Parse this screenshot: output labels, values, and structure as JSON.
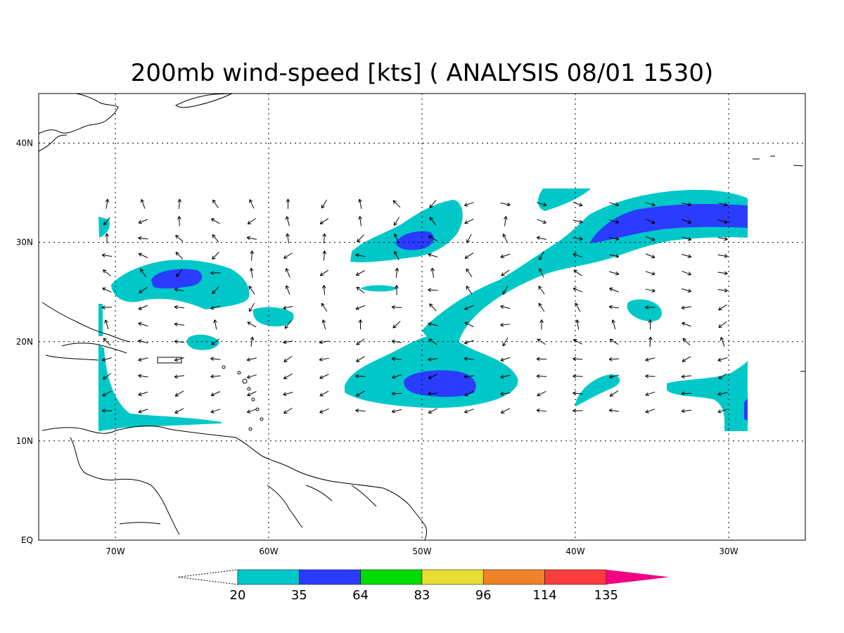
{
  "title": "200mb wind-speed [kts] ( ANALYSIS 08/01 1530)",
  "map": {
    "lon_range": [
      -75,
      -25
    ],
    "lat_range": [
      0,
      45
    ],
    "lat_ticks": [
      {
        "value": 0,
        "label": "EQ"
      },
      {
        "value": 10,
        "label": "10N"
      },
      {
        "value": 20,
        "label": "20N"
      },
      {
        "value": 30,
        "label": "30N"
      },
      {
        "value": 40,
        "label": "40N"
      }
    ],
    "lon_ticks": [
      {
        "value": -70,
        "label": "70W"
      },
      {
        "value": -60,
        "label": "60W"
      },
      {
        "value": -50,
        "label": "50W"
      },
      {
        "value": -40,
        "label": "40W"
      },
      {
        "value": -30,
        "label": "30W"
      }
    ],
    "grid": "dotted"
  },
  "colorbar": {
    "levels": [
      "20",
      "35",
      "64",
      "83",
      "96",
      "114",
      "135"
    ],
    "colors": [
      "#00c8c8",
      "#2a3cff",
      "#00dc00",
      "#e6dc32",
      "#f08228",
      "#fa3c3c",
      "#f00082"
    ]
  },
  "shading": {
    "cyan": "#00c8c8",
    "blue": "#2a3cff"
  }
}
